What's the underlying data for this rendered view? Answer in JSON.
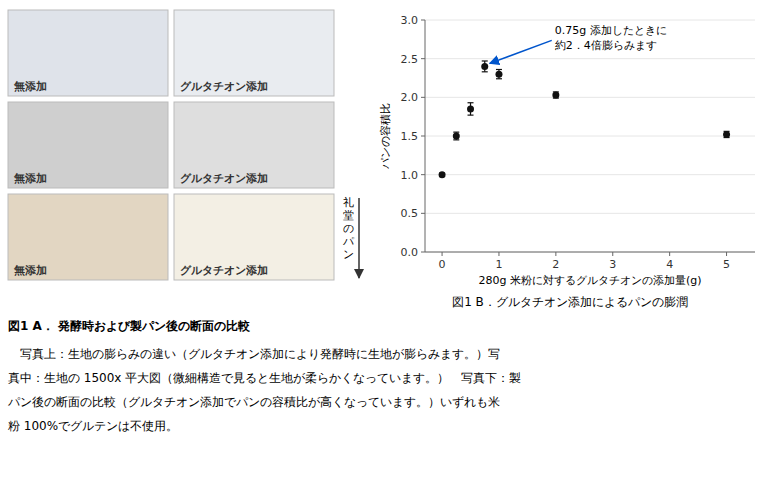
{
  "chart_data": {
    "type": "scatter",
    "title": "図1 B．グルタチオン添加によるパンの膨潤",
    "x_label": "280g 米粉に対するグルタチオンの添加量(g)",
    "y_label": "パンの容積比",
    "x": [
      0,
      0.25,
      0.5,
      0.75,
      1.0,
      2.0,
      5.0
    ],
    "series": [
      {
        "color": "#111111",
        "marker": "circle",
        "values": [
          1.0,
          1.5,
          1.85,
          2.4,
          2.3,
          2.03,
          1.52
        ],
        "errors": [
          0.02,
          0.05,
          0.08,
          0.07,
          0.06,
          0.04,
          0.04
        ]
      }
    ],
    "xlim": [
      -0.3,
      5.5
    ],
    "ylim": [
      0,
      3.0
    ],
    "xticks": [
      0,
      1,
      2,
      3,
      4,
      5
    ],
    "yticks": [
      {
        "value": 0,
        "label": "0.0"
      },
      0.5,
      {
        "value": 1.0,
        "label": "1.0"
      },
      1.5,
      {
        "value": 2.0,
        "label": "2.0"
      },
      2.5,
      {
        "value": 3.0,
        "label": "3.0"
      }
    ],
    "annotations": [
      {
        "text": "0.75g 添加したときに\n約2．4倍膨らみます",
        "x": 0.75,
        "y": 2.4,
        "color": "#0055cc"
      }
    ],
    "photo_labels": [
      "無添加",
      "グルタチオン添加"
    ],
    "side_label": "礼堂のパン",
    "caption": [
      "図1 A． 発酵時および製パン後の断面の比較",
      "　写真上：生地の膨らみの違い（グルタチオン添加により発酵時に生地が膨らみます。）写",
      "真中：生地の 1500x 平大図（微細構造で見ると生地が柔らかくなっています。）　写真下：製",
      "パン後の断面の比較（グルタチオン添加でパンの容積比が高くなっています。）いずれも米",
      "粉 100%でグルテンは不使用。"
    ]
  }
}
